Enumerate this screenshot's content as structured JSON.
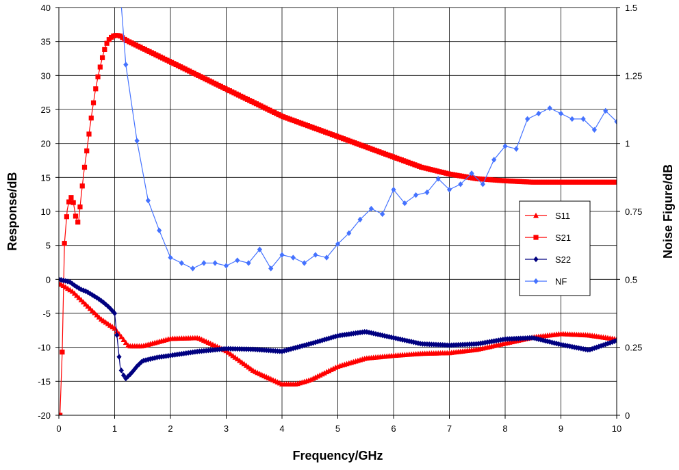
{
  "chart_data": {
    "type": "line",
    "title": "",
    "xlabel": "Frequency/GHz",
    "ylabel": "Response/dB",
    "y2label": "Noise Figure/dB",
    "xlim": [
      0,
      10
    ],
    "ylim": [
      -20,
      40
    ],
    "y2lim": [
      0,
      1.5
    ],
    "xticks": [
      "0",
      "1",
      "2",
      "3",
      "4",
      "5",
      "6",
      "7",
      "8",
      "9",
      "10"
    ],
    "yticks": [
      "-20",
      "-15",
      "-10",
      "-5",
      "0",
      "5",
      "10",
      "15",
      "20",
      "25",
      "30",
      "35",
      "40"
    ],
    "y2ticks": [
      "0",
      "0.25",
      "0.5",
      "0.75",
      "1",
      "1.25",
      "1.5"
    ],
    "grid": true,
    "legend_position": "right",
    "series": [
      {
        "name": "S11",
        "axis": "left",
        "color": "#ff0000",
        "marker": "triangle",
        "x": [
          0,
          0.25,
          0.5,
          0.75,
          1.0,
          1.25,
          1.5,
          2.0,
          2.5,
          3.0,
          3.5,
          4.0,
          4.25,
          4.5,
          5.0,
          5.5,
          6.0,
          6.5,
          7.0,
          7.5,
          8.0,
          8.5,
          9.0,
          9.5,
          10.0
        ],
        "values": [
          -0.5,
          -1.8,
          -3.8,
          -5.8,
          -7.2,
          -9.8,
          -9.8,
          -8.7,
          -8.6,
          -10.5,
          -13.5,
          -15.4,
          -15.4,
          -14.8,
          -12.8,
          -11.6,
          -11.2,
          -10.9,
          -10.8,
          -10.3,
          -9.4,
          -8.5,
          -8.0,
          -8.2,
          -8.8
        ]
      },
      {
        "name": "S21",
        "axis": "left",
        "color": "#ff0000",
        "marker": "square",
        "x": [
          0.02,
          0.06,
          0.1,
          0.15,
          0.2,
          0.25,
          0.3,
          0.35,
          0.4,
          0.45,
          0.5,
          0.55,
          0.6,
          0.65,
          0.7,
          0.75,
          0.8,
          0.85,
          0.9,
          0.95,
          1.0,
          1.05,
          1.1,
          1.15,
          1.2,
          1.5,
          2.0,
          2.5,
          3.0,
          3.5,
          4.0,
          4.5,
          5.0,
          5.5,
          6.0,
          6.5,
          7.0,
          7.5,
          8.0,
          8.5,
          9.0,
          9.5,
          10.0
        ],
        "values": [
          -20,
          -10.7,
          5.3,
          10.2,
          12.2,
          11.8,
          9.3,
          8.2,
          12.3,
          15.9,
          18.9,
          22.0,
          24.9,
          27.6,
          29.8,
          31.6,
          33.3,
          34.6,
          35.3,
          35.7,
          35.9,
          35.9,
          35.8,
          35.5,
          35.2,
          34.0,
          32.0,
          30.0,
          28.0,
          26.0,
          24.0,
          22.5,
          21.0,
          19.5,
          18.0,
          16.5,
          15.5,
          14.8,
          14.5,
          14.3,
          14.3,
          14.3,
          14.3
        ]
      },
      {
        "name": "S22",
        "axis": "left",
        "color": "#000080",
        "marker": "diamond",
        "x": [
          0,
          0.1,
          0.2,
          0.3,
          0.4,
          0.5,
          0.6,
          0.7,
          0.8,
          0.9,
          1.0,
          1.05,
          1.1,
          1.15,
          1.2,
          1.3,
          1.4,
          1.5,
          1.75,
          2.0,
          2.5,
          3.0,
          3.5,
          4.0,
          4.5,
          5.0,
          5.5,
          6.0,
          6.5,
          7.0,
          7.5,
          8.0,
          8.5,
          9.0,
          9.5,
          10.0
        ],
        "values": [
          0,
          -0.2,
          -0.4,
          -1.0,
          -1.5,
          -1.8,
          -2.3,
          -2.8,
          -3.4,
          -4.1,
          -5.0,
          -9.0,
          -13.0,
          -14.0,
          -14.6,
          -13.8,
          -12.8,
          -12.0,
          -11.5,
          -11.2,
          -10.6,
          -10.2,
          -10.3,
          -10.6,
          -9.5,
          -8.3,
          -7.7,
          -8.6,
          -9.5,
          -9.7,
          -9.5,
          -8.8,
          -8.6,
          -9.6,
          -10.4,
          -9.0
        ]
      },
      {
        "name": "NF",
        "axis": "right",
        "color": "#4472ff",
        "marker": "diamond",
        "x": [
          1.2,
          1.4,
          1.6,
          1.8,
          2.0,
          2.2,
          2.4,
          2.6,
          2.8,
          3.0,
          3.2,
          3.4,
          3.6,
          3.8,
          4.0,
          4.2,
          4.4,
          4.6,
          4.8,
          5.0,
          5.2,
          5.4,
          5.6,
          5.8,
          6.0,
          6.2,
          6.4,
          6.6,
          6.8,
          7.0,
          7.2,
          7.4,
          7.6,
          7.8,
          8.0,
          8.2,
          8.4,
          8.6,
          8.8,
          9.0,
          9.2,
          9.4,
          9.6,
          9.8,
          10.0
        ],
        "values": [
          1.29,
          1.01,
          0.79,
          0.68,
          0.58,
          0.56,
          0.54,
          0.56,
          0.56,
          0.55,
          0.57,
          0.56,
          0.61,
          0.54,
          0.59,
          0.58,
          0.56,
          0.59,
          0.58,
          0.63,
          0.67,
          0.72,
          0.76,
          0.74,
          0.83,
          0.78,
          0.81,
          0.82,
          0.87,
          0.83,
          0.85,
          0.89,
          0.85,
          0.94,
          0.99,
          0.98,
          1.09,
          1.11,
          1.13,
          1.11,
          1.09,
          1.09,
          1.05,
          1.12,
          1.08
        ]
      }
    ],
    "nf_entry_from_top": true
  }
}
